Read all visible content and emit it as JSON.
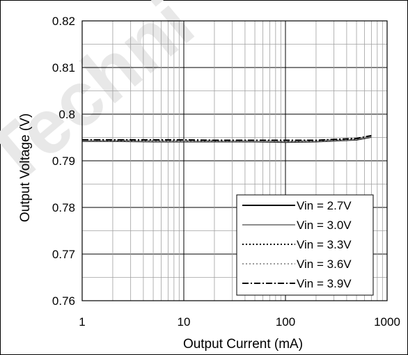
{
  "chart_data": {
    "type": "line",
    "title": "",
    "xlabel": "Output Current (mA)",
    "ylabel": "Output Voltage (V)",
    "xscale": "log",
    "xlim": [
      1,
      1000
    ],
    "ylim": [
      0.76,
      0.82
    ],
    "x_ticks": [
      1,
      10,
      100,
      1000
    ],
    "x_tick_labels": [
      "1",
      "10",
      "100",
      "1000"
    ],
    "y_ticks": [
      0.76,
      0.77,
      0.78,
      0.79,
      0.8,
      0.81,
      0.82
    ],
    "y_tick_labels": [
      "0.76",
      "0.77",
      "0.78",
      "0.79",
      "0.8",
      "0.81",
      "0.82"
    ],
    "grid": true,
    "legend_position": "bottom-right",
    "watermark": "Techni",
    "x": [
      1,
      2,
      5,
      10,
      20,
      50,
      100,
      200,
      500,
      700
    ],
    "series": [
      {
        "name": "Vin = 2.7V",
        "style": "solid",
        "color": "#000000",
        "values": [
          0.7942,
          0.7942,
          0.7941,
          0.7941,
          0.7941,
          0.7941,
          0.794,
          0.7941,
          0.7945,
          0.7951
        ]
      },
      {
        "name": "Vin = 3.0V",
        "style": "solid",
        "color": "#8c8c8c",
        "values": [
          0.7943,
          0.7943,
          0.7942,
          0.7942,
          0.7942,
          0.7942,
          0.7941,
          0.7942,
          0.7946,
          0.7952
        ]
      },
      {
        "name": "Vin = 3.3V",
        "style": "dotted",
        "color": "#000000",
        "values": [
          0.7944,
          0.7944,
          0.7943,
          0.7943,
          0.7943,
          0.7943,
          0.7942,
          0.7943,
          0.7947,
          0.7953
        ]
      },
      {
        "name": "Vin = 3.6V",
        "style": "dotted",
        "color": "#9a9a9a",
        "values": [
          0.7944,
          0.7945,
          0.7944,
          0.7944,
          0.7944,
          0.7943,
          0.7943,
          0.7944,
          0.7948,
          0.7953
        ]
      },
      {
        "name": "Vin = 3.9V",
        "style": "dashdot",
        "color": "#000000",
        "values": [
          0.7945,
          0.7945,
          0.7945,
          0.7945,
          0.7944,
          0.7944,
          0.7944,
          0.7944,
          0.7948,
          0.7954
        ]
      }
    ]
  }
}
